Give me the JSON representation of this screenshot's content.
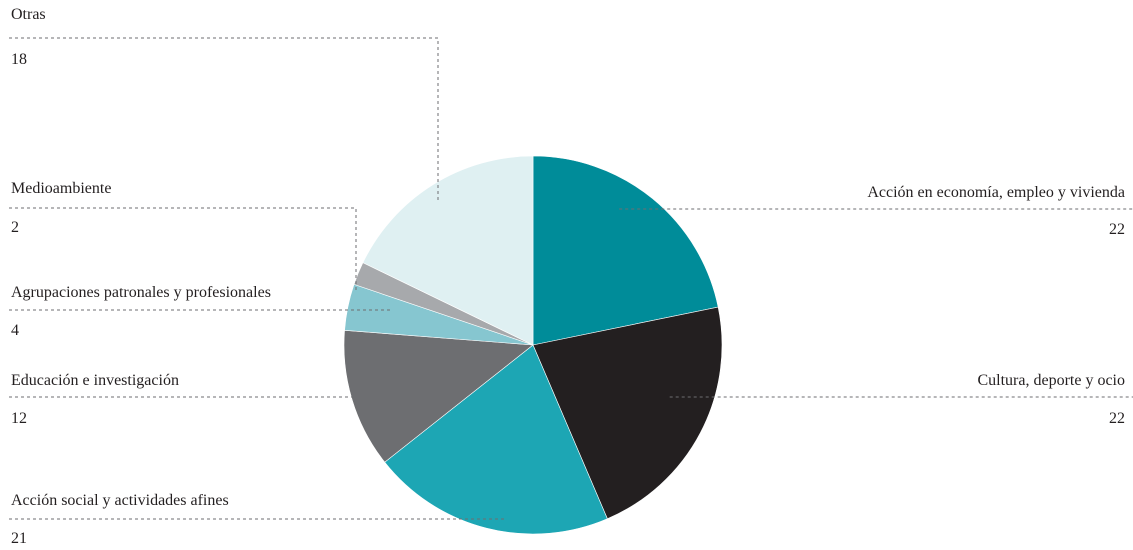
{
  "chart_data": {
    "type": "pie",
    "unit": "",
    "slices": [
      {
        "label": "Acción en economía, empleo y vivienda",
        "value": 22,
        "value_label": "22",
        "color": "#008c99"
      },
      {
        "label": "Cultura, deporte y ocio",
        "value": 22,
        "value_label": "22",
        "color": "#231f20"
      },
      {
        "label": "Acción social y actividades afines",
        "value": 21,
        "value_label": "21",
        "color": "#1da6b4"
      },
      {
        "label": "Educación e investigación",
        "value": 12,
        "value_label": "12",
        "color": "#6d6e71"
      },
      {
        "label": "Agrupaciones patronales y profesionales",
        "value": 4,
        "value_label": "4",
        "color": "#86c6d0"
      },
      {
        "label": "Medioambiente",
        "value": 2,
        "value_label": "2",
        "color": "#a7a9ac"
      },
      {
        "label": "Otras",
        "value": 18,
        "value_label": "18",
        "color": "#dff0f2"
      }
    ],
    "start_angle": "12 o'clock",
    "direction": "clockwise",
    "legend": "none (labels with dashed leader lines)"
  }
}
